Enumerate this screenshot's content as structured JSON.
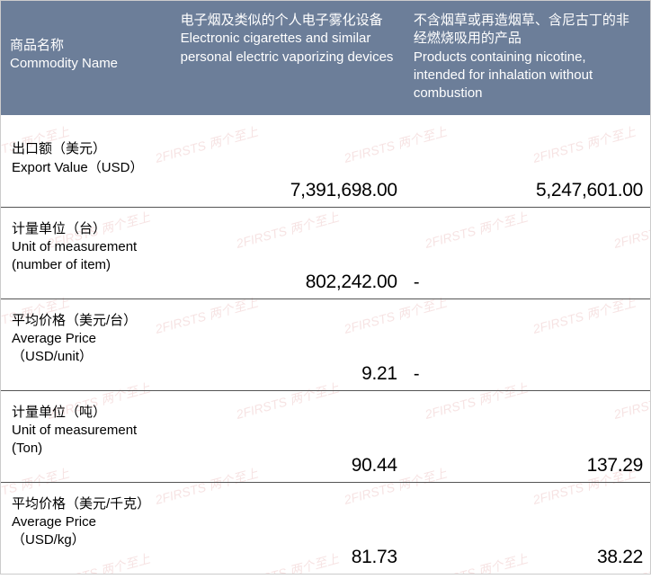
{
  "header": {
    "col1_zh": "商品名称",
    "col1_en": "Commodity Name",
    "col2_zh": "电子烟及类似的个人电子雾化设备",
    "col2_en": "Electronic cigarettes and similar personal electric vaporizing devices",
    "col3_zh": "不含烟草或再造烟草、含尼古丁的非经燃烧吸用的产品",
    "col3_en": "Products containing nicotine, intended for inhalation without combustion"
  },
  "rows": [
    {
      "label_zh": "出口额（美元）",
      "label_en": " Export Value（USD）",
      "v1": "7,391,698.00",
      "v2": "5,247,601.00",
      "v2_dash": false
    },
    {
      "label_zh": "计量单位（台）",
      "label_en": "Unit of measurement (number of item)",
      "v1": "802,242.00",
      "v2": "-",
      "v2_dash": true
    },
    {
      "label_zh": "平均价格（美元/台）",
      "label_en": "Average Price （USD/unit）",
      "v1": "9.21",
      "v2": "-",
      "v2_dash": true
    },
    {
      "label_zh": "计量单位（吨）",
      "label_en": "Unit of measurement (Ton)",
      "v1": "90.44",
      "v2": "137.29",
      "v2_dash": false
    },
    {
      "label_zh": "平均价格（美元/千克）",
      "label_en": "Average Price （USD/kg）",
      "v1": "81.73",
      "v2": "38.22",
      "v2_dash": false
    }
  ],
  "watermark_text": "2FIRSTS 两个至上",
  "colors": {
    "header_bg": "#6c7e99",
    "header_fg": "#ffffff",
    "border": "#555555",
    "text": "#000000",
    "watermark": "#e8b0b0"
  }
}
